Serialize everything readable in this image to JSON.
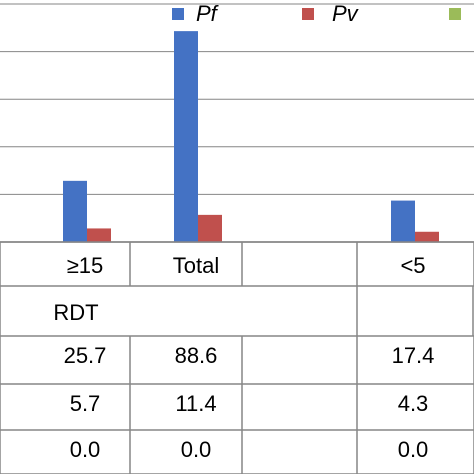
{
  "chart_data": {
    "type": "bar",
    "legend": [
      {
        "name": "Pf",
        "color": "#4472C4"
      },
      {
        "name": "Pv",
        "color": "#C0504D"
      },
      {
        "name": "",
        "color": "#9BBB59"
      }
    ],
    "categories": [
      "≥15",
      "Total",
      "",
      "<5"
    ],
    "group_label": "RDT",
    "series": [
      {
        "name": "Pf",
        "color": "#4472C4",
        "values": [
          25.7,
          88.6,
          null,
          17.4
        ]
      },
      {
        "name": "Pv",
        "color": "#C0504D",
        "values": [
          5.7,
          11.4,
          null,
          4.3
        ]
      },
      {
        "name": "",
        "color": "#9BBB59",
        "values": [
          0.0,
          0.0,
          null,
          0.0
        ]
      }
    ],
    "table_rows": [
      [
        "25.7",
        "88.6",
        "",
        "17.4"
      ],
      [
        "5.7",
        "11.4",
        "",
        "4.3"
      ],
      [
        "0.0",
        "0.0",
        "",
        "0.0"
      ]
    ],
    "ylim": [
      0,
      100
    ],
    "grid": true,
    "legend_position": "top"
  }
}
